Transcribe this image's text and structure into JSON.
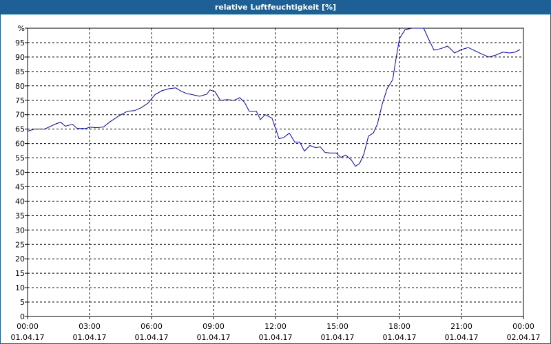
{
  "chart_data": {
    "type": "line",
    "title": "relative Luftfeuchtigkeit [%]",
    "x": [
      0,
      0.33,
      0.83,
      1.33,
      1.6,
      1.83,
      2.17,
      2.4,
      2.83,
      3,
      3.33,
      3.67,
      4,
      4.4,
      4.83,
      5.17,
      5.5,
      5.83,
      6.17,
      6.5,
      6.83,
      7.17,
      7.4,
      7.67,
      8,
      8.33,
      8.67,
      8.83,
      9.07,
      9.33,
      9.67,
      10,
      10.27,
      10.5,
      10.73,
      11.07,
      11.27,
      11.5,
      11.83,
      12.17,
      12.4,
      12.67,
      12.93,
      13.17,
      13.4,
      13.67,
      13.93,
      14.17,
      14.4,
      14.67,
      14.93,
      15.17,
      15.4,
      15.67,
      15.87,
      16.07,
      16.27,
      16.5,
      16.73,
      16.93,
      17.17,
      17.4,
      17.67,
      17.83,
      18,
      18.27,
      18.6,
      19.17,
      19.4,
      19.67,
      20,
      20.33,
      20.67,
      21,
      21.33,
      21.67,
      22,
      22.33,
      22.67,
      23,
      23.33,
      23.6,
      23.83
    ],
    "series": [
      {
        "name": "relative Luftfeuchtigkeit",
        "color": "#0000c8",
        "values": [
          64.3,
          65,
          65,
          66.7,
          67.4,
          66,
          66.7,
          65.2,
          65.2,
          65.7,
          65.5,
          65.7,
          67.6,
          69.5,
          71.2,
          71.4,
          72.4,
          74,
          77,
          78.3,
          79,
          79.3,
          78.3,
          77.4,
          76.9,
          76.4,
          77.1,
          78.6,
          78,
          75,
          75.2,
          75,
          75.9,
          74.3,
          71.2,
          71.2,
          68.3,
          70,
          68.8,
          61.7,
          62.1,
          63.6,
          60.5,
          60.5,
          57.4,
          59.3,
          58.6,
          58.8,
          56.9,
          56.7,
          56.7,
          55.2,
          56,
          54.3,
          52.1,
          53.1,
          56.2,
          62.6,
          63.6,
          66.7,
          73.8,
          79,
          82.1,
          89.3,
          96.4,
          99.5,
          100,
          100,
          96.4,
          92.4,
          92.9,
          93.8,
          91.4,
          92.6,
          93.3,
          92.1,
          91,
          90,
          90.7,
          91.7,
          91.4,
          91.7,
          92.6
        ]
      }
    ],
    "xlim": [
      0,
      24
    ],
    "xticks": [
      {
        "value": 0,
        "label": "00:00"
      },
      {
        "value": 3,
        "label": "03:00"
      },
      {
        "value": 6,
        "label": "06:00"
      },
      {
        "value": 9,
        "label": "09:00"
      },
      {
        "value": 12,
        "label": "12:00"
      },
      {
        "value": 15,
        "label": "15:00"
      },
      {
        "value": 18,
        "label": "18:00"
      },
      {
        "value": 21,
        "label": "21:00"
      },
      {
        "value": 24,
        "label": "00:00"
      }
    ],
    "xtick_dates": [
      "01.04.17",
      "01.04.17",
      "01.04.17",
      "01.04.17",
      "01.04.17",
      "01.04.17",
      "01.04.17",
      "01.04.17",
      "02.04.17"
    ],
    "ylim": [
      0,
      100
    ],
    "yticks": [
      0,
      5,
      10,
      15,
      20,
      25,
      30,
      35,
      40,
      45,
      50,
      55,
      60,
      65,
      70,
      75,
      80,
      85,
      90,
      95,
      {
        "value": 100,
        "label": "%"
      }
    ],
    "grid": true
  }
}
